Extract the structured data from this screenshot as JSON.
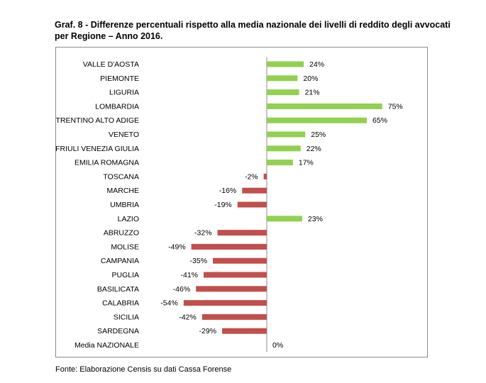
{
  "title": "Graf. 8 - Differenze percentuali rispetto alla media nazionale dei livelli di reddito degli avvocati per Regione – Anno 2016.",
  "source": "Fonte: Elaborazione Censis su dati Cassa Forense",
  "colors": {
    "positive": "#92d050",
    "negative": "#c0504d",
    "axis": "#8c8c8c"
  },
  "chart_data": {
    "type": "bar",
    "orientation": "horizontal",
    "title": "",
    "xlabel": "",
    "ylabel": "",
    "value_suffix": "%",
    "categories": [
      "VALLE D'AOSTA",
      "PIEMONTE",
      "LIGURIA",
      "LOMBARDIA",
      "TRENTINO ALTO ADIGE",
      "VENETO",
      "FRIULI VENEZIA GIULIA",
      "EMILIA ROMAGNA",
      "TOSCANA",
      "MARCHE",
      "UMBRIA",
      "LAZIO",
      "ABRUZZO",
      "MOLISE",
      "CAMPANIA",
      "PUGLIA",
      "BASILICATA",
      "CALABRIA",
      "SICILIA",
      "SARDEGNA",
      "Media NAZIONALE"
    ],
    "values": [
      24,
      20,
      21,
      75,
      65,
      25,
      22,
      17,
      -2,
      -16,
      -19,
      23,
      -32,
      -49,
      -35,
      -41,
      -46,
      -54,
      -42,
      -29,
      0
    ],
    "xlim": [
      -80,
      100
    ],
    "grid": false,
    "legend": "none"
  }
}
